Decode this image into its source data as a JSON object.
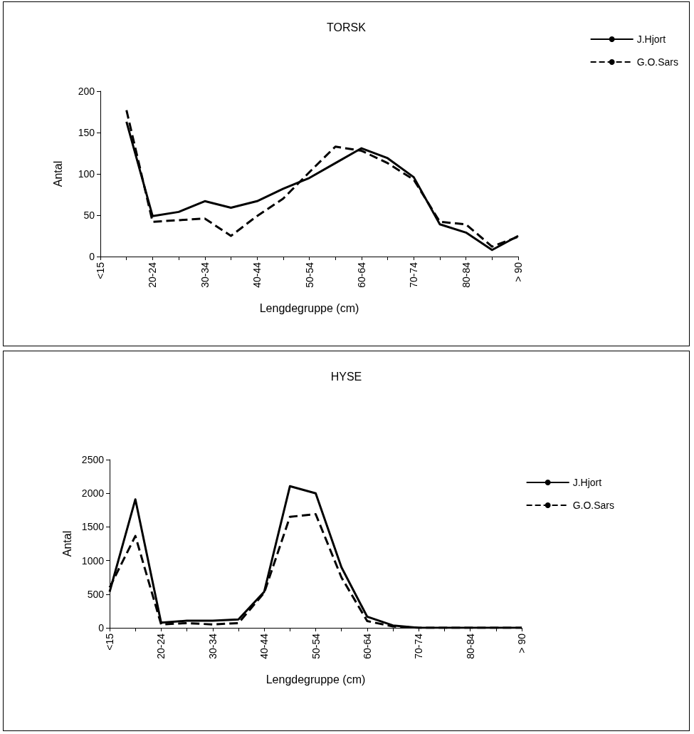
{
  "chart_data": [
    {
      "type": "line",
      "title": "TORSK",
      "xlabel": "Lengdegruppe (cm)",
      "ylabel": "Antal",
      "categories": [
        "<15",
        null,
        "20-24",
        null,
        "30-34",
        null,
        "40-44",
        null,
        "50-54",
        null,
        "60-64",
        null,
        "70-74",
        null,
        "80-84",
        null,
        "> 90"
      ],
      "series": [
        {
          "name": "J.Hjort",
          "color": "#000000",
          "line_style": "solid",
          "values": [
            null,
            163,
            49,
            54,
            67,
            59,
            67,
            82,
            95,
            113,
            131,
            119,
            96,
            39,
            29,
            8,
            25
          ]
        },
        {
          "name": "G.O.Sars",
          "color": "#000000",
          "line_style": "dashed",
          "values": [
            null,
            177,
            42,
            44,
            46,
            25,
            49,
            70,
            102,
            133,
            128,
            113,
            93,
            42,
            39,
            12,
            24
          ]
        }
      ],
      "ylim": [
        0,
        200
      ],
      "yticks": [
        0,
        50,
        100,
        150,
        200
      ],
      "grid": false,
      "legend": "top right",
      "marker": "none"
    },
    {
      "type": "line",
      "title": "HYSE",
      "xlabel": "Lengdegruppe (cm)",
      "ylabel": "Antal",
      "categories": [
        "<15",
        null,
        "20-24",
        null,
        "30-34",
        null,
        "40-44",
        null,
        "50-54",
        null,
        "60-64",
        null,
        "70-74",
        null,
        "80-84",
        null,
        "> 90"
      ],
      "series": [
        {
          "name": "J.Hjort",
          "color": "#000000",
          "line_style": "solid",
          "values": [
            535,
            1910,
            76,
            105,
            105,
            125,
            535,
            2105,
            2000,
            900,
            165,
            35,
            0,
            0,
            0,
            0,
            0
          ]
        },
        {
          "name": "G.O.Sars",
          "color": "#000000",
          "line_style": "dashed",
          "values": [
            600,
            1365,
            50,
            70,
            50,
            70,
            520,
            1650,
            1690,
            750,
            100,
            20,
            0,
            0,
            0,
            0,
            0
          ]
        }
      ],
      "ylim": [
        0,
        2500
      ],
      "yticks": [
        0,
        500,
        1000,
        1500,
        2000,
        2500
      ],
      "grid": false,
      "legend": "right",
      "marker": "none"
    }
  ]
}
